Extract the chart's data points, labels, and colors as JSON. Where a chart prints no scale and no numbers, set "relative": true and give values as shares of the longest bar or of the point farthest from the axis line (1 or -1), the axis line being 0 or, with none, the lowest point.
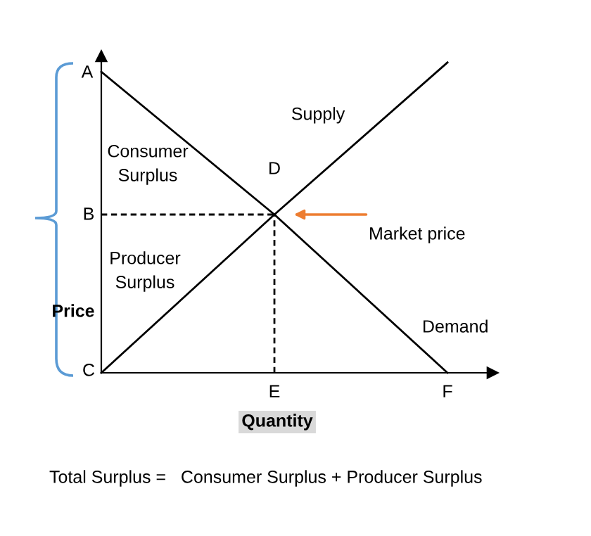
{
  "chart_data": {
    "type": "line",
    "relative": true,
    "xlabel": "Quantity",
    "ylabel": "Price",
    "marker": "none",
    "categories": [
      null,
      "E",
      "F"
    ],
    "series": [
      {
        "name": "Supply",
        "color": "#000000",
        "values": [
          0,
          0.51,
          1
        ]
      },
      {
        "name": "Demand",
        "color": "#000000",
        "values": [
          0.97,
          0.51,
          0
        ]
      }
    ],
    "ref_lines": [
      {
        "axis": "y",
        "value": 0.51,
        "color": "#000000",
        "line_style": "dashed"
      },
      {
        "axis": "x",
        "value": "E",
        "color": "#000000",
        "line_style": "dashed"
      }
    ],
    "annotations": [
      "A",
      "B",
      "C",
      {
        "text": "D",
        "x": "E",
        "y": 0.51
      },
      "Consumer\nSurplus",
      "Producer\nSurplus",
      "Market price",
      "Total Surplus =   Consumer Surplus + Producer Surplus"
    ]
  }
}
